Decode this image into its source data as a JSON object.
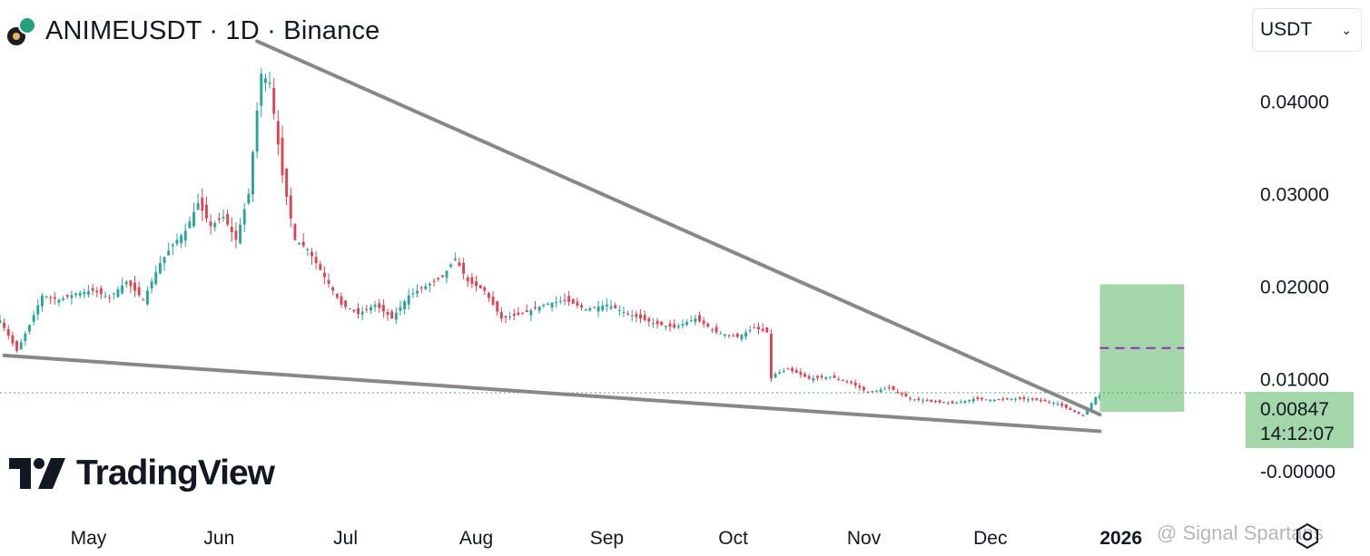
{
  "header": {
    "title": "ANIMEUSDT · 1D · Binance"
  },
  "currency_select": {
    "value": "USDT"
  },
  "price_tag": {
    "price": "0.00847",
    "countdown": "14:12:07"
  },
  "logo": {
    "text": "TradingView"
  },
  "watermark": {
    "text": "@ Signal Spartans"
  },
  "colors": {
    "up": "#26a69a",
    "down": "#e0424f",
    "trendline": "#888888",
    "target_zone": "#a3d6a8",
    "target_line": "#9c27b0",
    "price_line": "#4caf50"
  },
  "chart_data": {
    "type": "candlestick",
    "title": "ANIMEUSDT · 1D · Binance",
    "xlabel": "",
    "ylabel": "",
    "x_ticks": [
      "May",
      "Jun",
      "Jul",
      "Aug",
      "Sep",
      "Oct",
      "Nov",
      "Dec",
      "2026"
    ],
    "y_ticks": [
      "0.04000",
      "0.03000",
      "0.02000",
      "0.01000",
      "0.00847",
      "-0.00000"
    ],
    "ylim": [
      -0.004,
      0.049
    ],
    "xlim": [
      "2025-04-10",
      "2026-01-28"
    ],
    "last_price": 0.00847,
    "grid": false,
    "price_series": {
      "dates": [
        "2025-04-10",
        "2025-04-14",
        "2025-04-17",
        "2025-04-20",
        "2025-04-24",
        "2025-04-28",
        "2025-05-02",
        "2025-05-06",
        "2025-05-10",
        "2025-05-14",
        "2025-05-18",
        "2025-05-21",
        "2025-05-24",
        "2025-05-27",
        "2025-05-30",
        "2025-06-02",
        "2025-06-05",
        "2025-06-08",
        "2025-06-10",
        "2025-06-11",
        "2025-06-13",
        "2025-06-16",
        "2025-06-19",
        "2025-06-22",
        "2025-06-26",
        "2025-06-30",
        "2025-07-04",
        "2025-07-08",
        "2025-07-12",
        "2025-07-16",
        "2025-07-20",
        "2025-07-24",
        "2025-07-27",
        "2025-07-30",
        "2025-08-03",
        "2025-08-07",
        "2025-08-12",
        "2025-08-17",
        "2025-08-22",
        "2025-08-27",
        "2025-09-01",
        "2025-09-06",
        "2025-09-12",
        "2025-09-17",
        "2025-09-22",
        "2025-09-27",
        "2025-10-02",
        "2025-10-06",
        "2025-10-09",
        "2025-10-10",
        "2025-10-11",
        "2025-10-14",
        "2025-10-19",
        "2025-10-24",
        "2025-10-29",
        "2025-11-02",
        "2025-11-07",
        "2025-11-12",
        "2025-11-17",
        "2025-11-22",
        "2025-11-27",
        "2025-12-02",
        "2025-12-07",
        "2025-12-12",
        "2025-12-17",
        "2025-12-20",
        "2025-12-23",
        "2025-12-26",
        "2025-12-28"
      ],
      "close": [
        0.0163,
        0.013,
        0.0158,
        0.019,
        0.0185,
        0.0192,
        0.0195,
        0.0188,
        0.0205,
        0.0185,
        0.0225,
        0.0245,
        0.026,
        0.029,
        0.0265,
        0.0275,
        0.025,
        0.03,
        0.039,
        0.043,
        0.042,
        0.032,
        0.025,
        0.024,
        0.021,
        0.018,
        0.017,
        0.018,
        0.0165,
        0.019,
        0.02,
        0.021,
        0.023,
        0.0205,
        0.0195,
        0.0165,
        0.017,
        0.018,
        0.0185,
        0.0175,
        0.018,
        0.017,
        0.016,
        0.0155,
        0.0165,
        0.015,
        0.0145,
        0.0155,
        0.015,
        0.01,
        0.0105,
        0.011,
        0.01,
        0.0102,
        0.0095,
        0.0085,
        0.009,
        0.0078,
        0.0075,
        0.0073,
        0.0078,
        0.0077,
        0.0078,
        0.0077,
        0.0073,
        0.0066,
        0.006,
        0.008,
        0.0085
      ]
    },
    "trendlines": [
      {
        "name": "",
        "points": [
          [
            "2025-06-10",
            0.0465
          ],
          [
            "2025-12-27",
            0.0061
          ]
        ]
      },
      {
        "name": "",
        "points": [
          [
            "2025-04-11",
            0.0125
          ],
          [
            "2025-12-27",
            0.0043
          ]
        ]
      }
    ],
    "target_zone": {
      "x_range": [
        "2025-12-27",
        "2026-01-16"
      ],
      "y_range": [
        0.0064,
        0.0202
      ],
      "target": 0.0133
    }
  }
}
